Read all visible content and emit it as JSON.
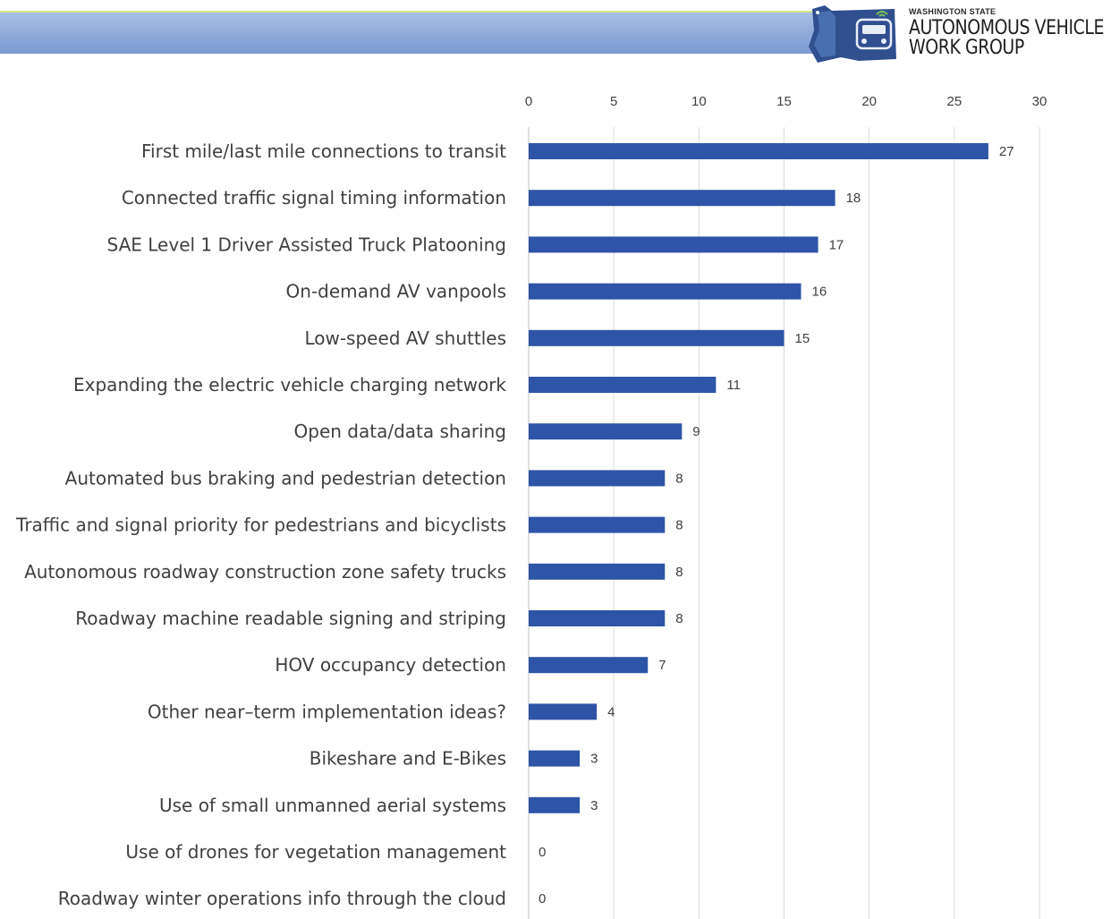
{
  "header": {
    "logo_top": "WASHINGTON STATE",
    "logo_line1": "AUTONOMOUS VEHICLE",
    "logo_line2": "WORK GROUP",
    "bar_color": "#8eaad9",
    "accent_line_color": "#d8e88a"
  },
  "chart_data": {
    "type": "bar",
    "orientation": "horizontal",
    "title": "",
    "xlabel": "",
    "ylabel": "",
    "xlim": [
      0,
      30
    ],
    "xticks": [
      0,
      5,
      10,
      15,
      20,
      25,
      30
    ],
    "axis_position": "top",
    "grid": true,
    "legend": "none",
    "bar_color": "#2e54a8",
    "categories": [
      "First mile/last mile connections to transit",
      "Connected traffic signal timing information",
      "SAE Level 1 Driver Assisted Truck Platooning",
      "On-demand AV vanpools",
      "Low-speed AV shuttles",
      "Expanding the electric vehicle charging network",
      "Open data/data sharing",
      "Automated bus braking and pedestrian detection",
      "Traffic and signal priority for pedestrians and bicyclists",
      "Autonomous roadway construction zone safety trucks",
      "Roadway machine readable signing and striping",
      "HOV occupancy detection",
      "Other near–term implementation ideas?",
      "Bikeshare and E-Bikes",
      "Use of small unmanned aerial systems",
      "Use of drones for vegetation management",
      "Roadway winter operations info through the cloud"
    ],
    "values": [
      27,
      18,
      17,
      16,
      15,
      11,
      9,
      8,
      8,
      8,
      8,
      7,
      4,
      3,
      3,
      0,
      0
    ]
  }
}
